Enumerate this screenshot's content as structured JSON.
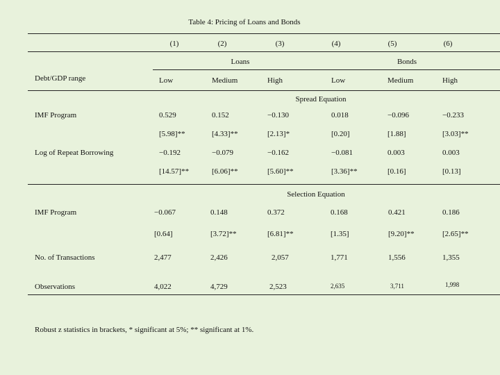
{
  "title": "Table 4: Pricing of Loans and Bonds",
  "column_numbers": [
    "(1)",
    "(2)",
    "(3)",
    "(4)",
    "(5)",
    "(6)"
  ],
  "groups": {
    "loans": "Loans",
    "bonds": "Bonds"
  },
  "range_label": "Debt/GDP range",
  "levels": [
    "Low",
    "Medium",
    "High",
    "Low",
    "Medium",
    "High"
  ],
  "spread": {
    "title": "Spread Equation",
    "imf": {
      "label": "IMF Program",
      "coefs": [
        "0.529",
        "0.152",
        "−0.130",
        "0.018",
        "−0.096",
        "−0.233"
      ],
      "zstats": [
        "[5.98]**",
        "[4.33]**",
        "[2.13]*",
        "[0.20]",
        "[1.88]",
        "[3.03]**"
      ]
    },
    "repeat": {
      "label": "Log of Repeat Borrowing",
      "coefs": [
        "−0.192",
        "−0.079",
        "−0.162",
        "−0.081",
        "0.003",
        "0.003"
      ],
      "zstats": [
        "[14.57]**",
        "[6.06]**",
        "[5.60]**",
        "[3.36]**",
        "[0.16]",
        "[0.13]"
      ]
    }
  },
  "selection": {
    "title": "Selection Equation",
    "imf": {
      "label": "IMF Program",
      "coefs": [
        "−0.067",
        "0.148",
        "0.372",
        "0.168",
        "0.421",
        "0.186"
      ],
      "zstats": [
        "[0.64]",
        "[3.72]**",
        "[6.81]**",
        "[1.35]",
        "[9.20]**",
        "[2.65]**"
      ]
    }
  },
  "transactions": {
    "label": "No. of Transactions",
    "values": [
      "2,477",
      "2,426",
      "2,057",
      "1,771",
      "1,556",
      "1,355"
    ]
  },
  "observations": {
    "label": "Observations",
    "values": [
      "4,022",
      "4,729",
      "2,523",
      "2,635",
      "3,711",
      "1,998"
    ]
  },
  "footnote": "Robust z statistics in brackets, * significant at 5%; ** significant at 1%."
}
